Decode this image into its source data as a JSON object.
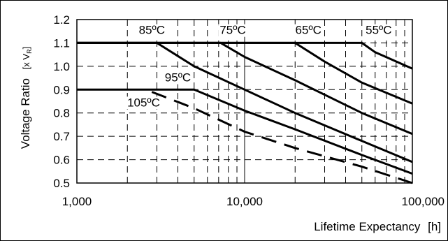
{
  "chart_data": {
    "type": "line",
    "xlabel": "Lifetime Expectancy",
    "xunit": "[h]",
    "ylabel": "Voltage Ratio",
    "yunit": "[x V",
    "yunit_sub": "R",
    "yunit_close": "]",
    "xscale": "log",
    "xlim": [
      1000,
      100000
    ],
    "ylim": [
      0.5,
      1.2
    ],
    "xticks": [
      1000,
      10000,
      100000
    ],
    "xtick_labels": [
      "1,000",
      "10,000",
      "100,000"
    ],
    "yticks": [
      0.5,
      0.6,
      0.7,
      0.8,
      0.9,
      1.0,
      1.1,
      1.2
    ],
    "ytick_labels": [
      "0.5",
      "0.6",
      "0.7",
      "0.8",
      "0.9",
      "1.0",
      "1.1",
      "1.2"
    ],
    "grid": "dashed",
    "series": [
      {
        "name": "85ºC",
        "style": "solid",
        "x": [
          1000,
          3000,
          5000,
          10000,
          20000,
          50000,
          100000
        ],
        "y": [
          1.1,
          1.1,
          1.0,
          0.9,
          0.8,
          0.68,
          0.59
        ]
      },
      {
        "name": "75ºC",
        "style": "solid",
        "x": [
          1000,
          7200,
          10000,
          20000,
          50000,
          100000
        ],
        "y": [
          1.1,
          1.1,
          1.04,
          0.94,
          0.8,
          0.71
        ]
      },
      {
        "name": "65ºC",
        "style": "solid",
        "x": [
          1000,
          20000,
          30000,
          50000,
          100000
        ],
        "y": [
          1.1,
          1.1,
          1.02,
          0.93,
          0.84
        ]
      },
      {
        "name": "55ºC",
        "style": "solid",
        "x": [
          1000,
          50000,
          60000,
          100000
        ],
        "y": [
          1.1,
          1.1,
          1.06,
          0.99
        ]
      },
      {
        "name": "95ºC",
        "style": "solid",
        "x": [
          1000,
          5000,
          10000,
          20000,
          50000,
          100000
        ],
        "y": [
          0.9,
          0.9,
          0.81,
          0.73,
          0.62,
          0.54
        ]
      },
      {
        "name": "105ºC",
        "style": "dashed",
        "x": [
          2800,
          5000,
          10000,
          20000,
          50000,
          100000
        ],
        "y": [
          0.89,
          0.82,
          0.72,
          0.65,
          0.57,
          0.5
        ]
      }
    ],
    "labels": [
      {
        "text": "85ºC",
        "x": 2800,
        "y": 1.138
      },
      {
        "text": "75ºC",
        "x": 8500,
        "y": 1.138
      },
      {
        "text": "65ºC",
        "x": 24000,
        "y": 1.138
      },
      {
        "text": "55ºC",
        "x": 63000,
        "y": 1.138
      },
      {
        "text": "95ºC",
        "x": 4000,
        "y": 0.935
      },
      {
        "text": "105ºC",
        "x": 2500,
        "y": 0.828
      }
    ]
  }
}
